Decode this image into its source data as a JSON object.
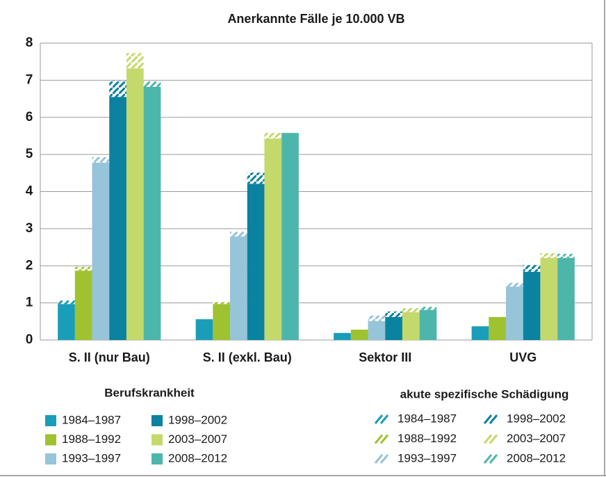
{
  "chart_data": {
    "type": "bar",
    "title": "Anerkannte Fälle je 10.000 VB",
    "categories": [
      "S. II (nur Bau)",
      "S. II (exkl. Bau)",
      "Sektor III",
      "UVG"
    ],
    "ylim": [
      0,
      8
    ],
    "yticks": [
      0,
      1,
      2,
      3,
      4,
      5,
      6,
      7,
      8
    ],
    "grid": true,
    "series_title": "Berufskrankheit",
    "series": [
      {
        "name": "1984–1987",
        "color": "#1a9db8",
        "values": [
          0.97,
          0.56,
          0.19,
          0.37
        ]
      },
      {
        "name": "1988–1992",
        "color": "#9fc230",
        "values": [
          1.87,
          0.97,
          0.28,
          0.62
        ]
      },
      {
        "name": "1993–1997",
        "color": "#96c4d8",
        "values": [
          4.78,
          2.79,
          0.51,
          1.44
        ]
      },
      {
        "name": "1998–2002",
        "color": "#0a82a0",
        "values": [
          6.55,
          4.21,
          0.62,
          1.84
        ]
      },
      {
        "name": "2003–2007",
        "color": "#c4d96b",
        "values": [
          7.32,
          5.43,
          0.75,
          2.21
        ]
      },
      {
        "name": "2008–2012",
        "color": "#4db6ab",
        "values": [
          6.82,
          5.58,
          0.81,
          2.21
        ]
      }
    ],
    "acute_title": "akute spezifische Schädigung",
    "acute_series": [
      {
        "name": "1984–1987",
        "color": "#1a9db8",
        "values": [
          0.1,
          0,
          0,
          0
        ]
      },
      {
        "name": "1988–1992",
        "color": "#9fc230",
        "values": [
          0.1,
          0.05,
          0,
          0
        ]
      },
      {
        "name": "1993–1997",
        "color": "#96c4d8",
        "values": [
          0.15,
          0.13,
          0.15,
          0.1
        ]
      },
      {
        "name": "1998–2002",
        "color": "#0a82a0",
        "values": [
          0.43,
          0.3,
          0.15,
          0.18
        ]
      },
      {
        "name": "2003–2007",
        "color": "#c4d96b",
        "values": [
          0.41,
          0.15,
          0.11,
          0.13
        ]
      },
      {
        "name": "2008–2012",
        "color": "#4db6ab",
        "values": [
          0.15,
          0,
          0.09,
          0.11
        ]
      }
    ]
  }
}
